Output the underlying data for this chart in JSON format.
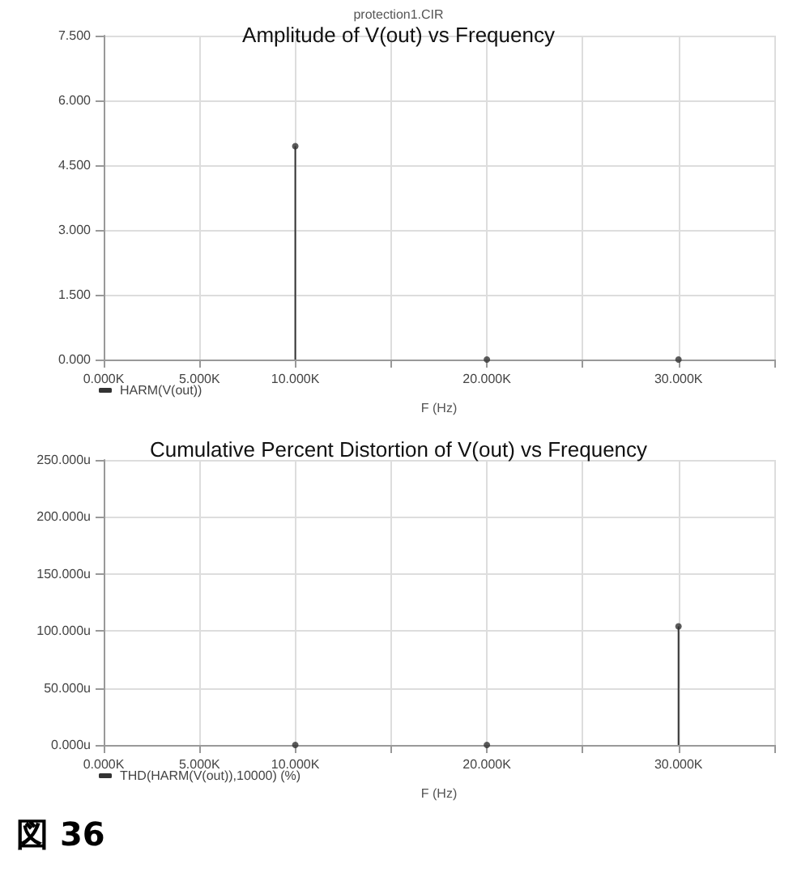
{
  "chart_data": [
    {
      "type": "lollipop",
      "title": "Amplitude of V(out) vs Frequency",
      "subtitle": "protection1.CIR",
      "xlabel": "F (Hz)",
      "x": [
        10000,
        20000,
        30000
      ],
      "series": [
        {
          "name": "HARM(V(out))",
          "color": "#333333",
          "values": [
            4.94,
            0,
            0
          ]
        }
      ],
      "xlim": [
        0,
        35000
      ],
      "xticks": [
        {
          "value": 0,
          "label": "0.000K"
        },
        {
          "value": 5000,
          "label": "5.000K"
        },
        {
          "value": 10000,
          "label": "10.000K"
        },
        {
          "value": 15000,
          "label": null
        },
        {
          "value": 20000,
          "label": "20.000K"
        },
        {
          "value": 25000,
          "label": null
        },
        {
          "value": 30000,
          "label": "30.000K"
        },
        {
          "value": 35000,
          "label": null
        }
      ],
      "ylim": [
        0,
        7.5
      ],
      "yticks": [
        {
          "value": 0,
          "label": "0.000"
        },
        {
          "value": 1.5,
          "label": "1.500"
        },
        {
          "value": 3,
          "label": "3.000"
        },
        {
          "value": 4.5,
          "label": "4.500"
        },
        {
          "value": 6,
          "label": "6.000"
        },
        {
          "value": 7.5,
          "label": "7.500"
        }
      ],
      "grid": true,
      "legend": "bottom left",
      "marker": "circle"
    },
    {
      "type": "lollipop",
      "title": "Cumulative Percent Distortion of V(out) vs Frequency",
      "xlabel": "F (Hz)",
      "x": [
        10000,
        20000,
        30000
      ],
      "series": [
        {
          "name": "THD(HARM(V(out)),10000) (%)",
          "color": "#333333",
          "values": [
            0,
            0,
            104
          ]
        }
      ],
      "xlim": [
        0,
        35000
      ],
      "xticks": [
        {
          "value": 0,
          "label": "0.000K"
        },
        {
          "value": 5000,
          "label": "5.000K"
        },
        {
          "value": 10000,
          "label": "10.000K"
        },
        {
          "value": 15000,
          "label": null
        },
        {
          "value": 20000,
          "label": "20.000K"
        },
        {
          "value": 25000,
          "label": null
        },
        {
          "value": 30000,
          "label": "30.000K"
        },
        {
          "value": 35000,
          "label": null
        }
      ],
      "ylim": [
        0,
        250
      ],
      "yticks": [
        {
          "value": 0,
          "label": "0.000u"
        },
        {
          "value": 50,
          "label": "50.000u"
        },
        {
          "value": 100,
          "label": "100.000u"
        },
        {
          "value": 150,
          "label": "150.000u"
        },
        {
          "value": 200,
          "label": "200.000u"
        },
        {
          "value": 250,
          "label": "250.000u"
        }
      ],
      "grid": true,
      "legend": "bottom left",
      "marker": "circle",
      "annotations": [
        "図 36"
      ]
    }
  ]
}
